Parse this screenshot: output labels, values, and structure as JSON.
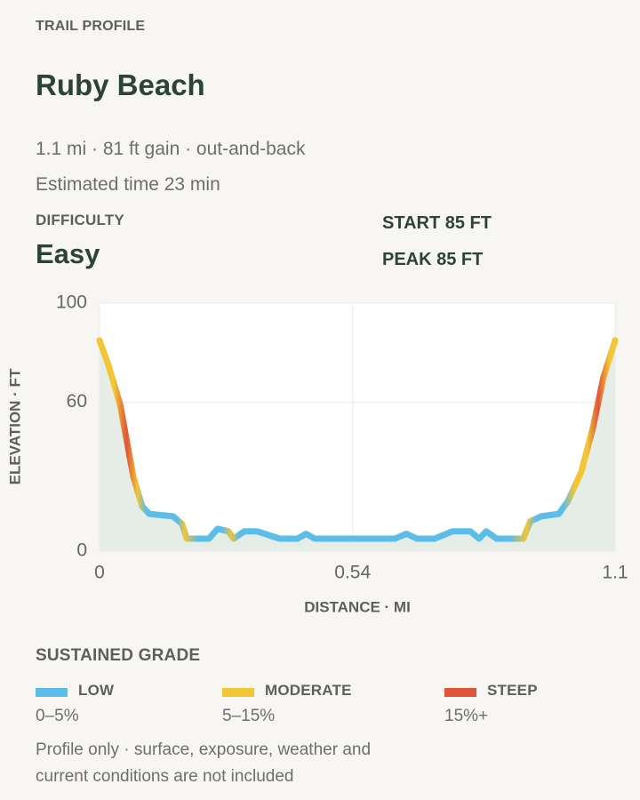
{
  "header": {
    "eyebrow": "TRAIL PROFILE",
    "title": "Ruby Beach",
    "summary": "1.1 mi · 81 ft gain · out-and-back",
    "time": "Estimated time 23 min"
  },
  "stats": {
    "difficulty_label": "DIFFICULTY",
    "difficulty": "Easy",
    "start": "START 85 FT",
    "peak": "PEAK 85 FT"
  },
  "chart_data": {
    "type": "line",
    "xlabel": "DISTANCE · MI",
    "ylabel": "ELEVATION · FT",
    "x": [
      0,
      0.019,
      0.044,
      0.072,
      0.091,
      0.106,
      0.157,
      0.176,
      0.186,
      0.233,
      0.252,
      0.275,
      0.286,
      0.309,
      0.336,
      0.384,
      0.422,
      0.441,
      0.459,
      0.63,
      0.655,
      0.677,
      0.715,
      0.753,
      0.791,
      0.81,
      0.825,
      0.847,
      0.904,
      0.919,
      0.942,
      0.98,
      0.999,
      1.028,
      1.053,
      1.075,
      1.1
    ],
    "series": [
      {
        "values": [
          85,
          75,
          59,
          30,
          18,
          15,
          14,
          11,
          5,
          5,
          9,
          8,
          5,
          8,
          8,
          5,
          5,
          7,
          5,
          5,
          7,
          5,
          5,
          8,
          8,
          5,
          8,
          5,
          5,
          12,
          14,
          15,
          20,
          32,
          50,
          70,
          85
        ]
      }
    ],
    "xlim": [
      0,
      1.1
    ],
    "xticks": [
      0,
      0.54,
      1.1
    ],
    "ylim": [
      0,
      100
    ],
    "yticks": [
      0,
      60,
      100
    ],
    "grid": true,
    "area_color": "#e6ede6"
  },
  "legend": {
    "title": "SUSTAINED GRADE",
    "items": [
      {
        "name": "LOW",
        "color": "#5bbde8",
        "range": {
          "value": 5,
          "label": "0–5%"
        }
      },
      {
        "name": "MODERATE",
        "color": "#f2c634",
        "range": {
          "value": 15,
          "label": "5–15%"
        }
      },
      {
        "name": "STEEP",
        "color": "#e0553a",
        "range": "15%+"
      }
    ]
  },
  "note": {
    "line1": "Profile only · surface, exposure, weather and",
    "line2": "current conditions are not included"
  }
}
